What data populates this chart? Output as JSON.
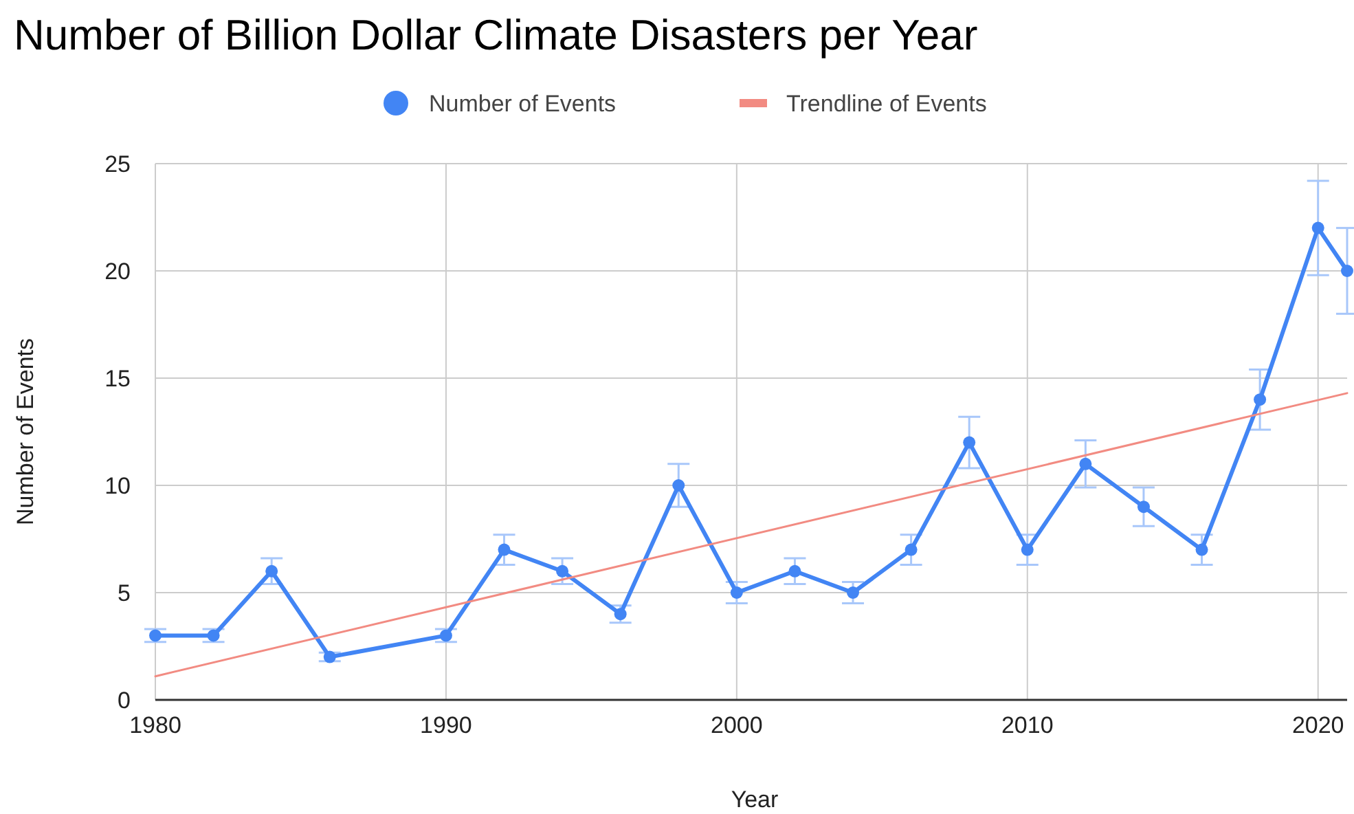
{
  "chart_data": {
    "type": "line",
    "title": "Number of Billion Dollar Climate Disasters per Year",
    "xlabel": "Year",
    "ylabel": "Number of Events",
    "xlim": [
      1980,
      2021
    ],
    "xticks": [
      1980,
      1990,
      2000,
      2010,
      2020
    ],
    "ylim": [
      0,
      25
    ],
    "yticks": [
      0,
      5,
      10,
      15,
      20,
      25
    ],
    "grid": true,
    "legend": "top",
    "marker": "circle",
    "line_style": "solid",
    "series": [
      {
        "name": "Number of Events",
        "color": "#4285f4",
        "x": [
          1980,
          1982,
          1984,
          1986,
          1990,
          1992,
          1994,
          1996,
          1998,
          2000,
          2002,
          2004,
          2006,
          2008,
          2010,
          2012,
          2014,
          2016,
          2018,
          2020,
          2021
        ],
        "values": [
          3,
          3,
          6,
          2,
          3,
          7,
          6,
          4,
          10,
          5,
          6,
          5,
          7,
          12,
          7,
          11,
          9,
          7,
          14,
          22,
          20
        ],
        "errors": [
          0.3,
          0.3,
          0.6,
          0.2,
          0.3,
          0.7,
          0.6,
          0.4,
          1,
          0.5,
          0.6,
          0.5,
          0.7,
          1.2,
          0.7,
          1.1,
          0.9,
          0.7,
          1.4,
          2.2,
          2
        ]
      },
      {
        "name": "Trendline of Events",
        "color": "#f28b82",
        "type": "line",
        "marker": "none",
        "x": [
          1980,
          2021
        ],
        "values": [
          1.1,
          14.3
        ]
      }
    ]
  }
}
